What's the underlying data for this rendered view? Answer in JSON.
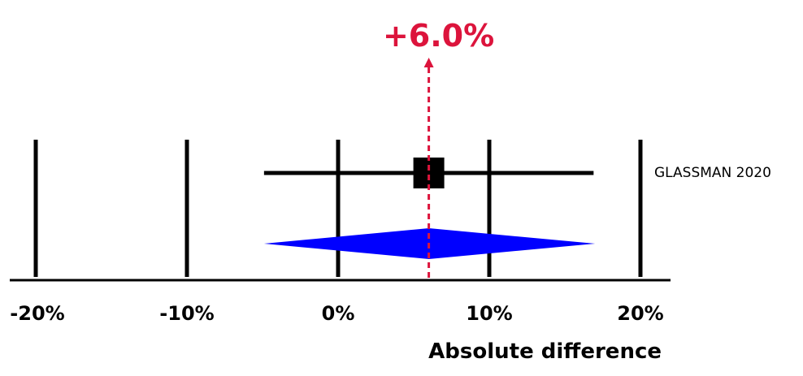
{
  "colors": {
    "summary_diamond": "#0000ff",
    "summary_marker": "#dc143c",
    "study_marker": "#000000"
  },
  "chart_data": {
    "type": "forest",
    "xlabel": "Absolute difference",
    "xlim": [
      -20,
      20
    ],
    "ticks": [
      -20,
      -10,
      0,
      10,
      20
    ],
    "tick_labels": [
      "-20%",
      "-10%",
      "0%",
      "10%",
      "20%"
    ],
    "grid": true,
    "studies": [
      {
        "name": "GLASSMAN 2020",
        "estimate": 6.0,
        "ci_low": -4.9,
        "ci_high": 16.9
      }
    ],
    "summary": {
      "estimate": 6.0,
      "ci_low": -4.9,
      "ci_high": 17.0,
      "label": "+6.0%"
    }
  }
}
